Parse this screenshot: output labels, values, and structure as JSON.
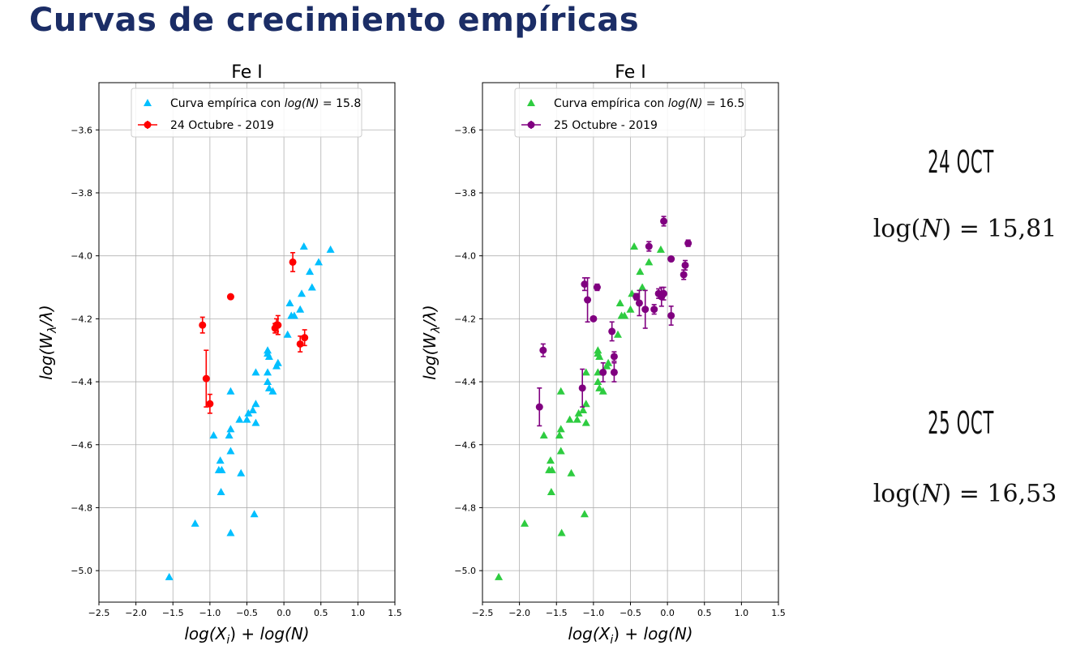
{
  "slide_title": "Curvas de crecimiento empíricas",
  "colors": {
    "title": "#1b2d66",
    "empirical_left": "#00bfff",
    "observed_left": "#ff0000",
    "empirical_right": "#2ecc40",
    "observed_right": "#800080"
  },
  "chart_data": [
    {
      "type": "scatter",
      "title": "Fe I",
      "xlabel": "log(X_i) + log(N)",
      "ylabel": "log(W_λ/λ)",
      "xlim": [
        -2.5,
        1.5
      ],
      "ylim": [
        -5.1,
        -3.45
      ],
      "xticks": [
        -2.5,
        -2.0,
        -1.5,
        -1.0,
        -0.5,
        0.0,
        0.5,
        1.0,
        1.5
      ],
      "yticks": [
        -3.6,
        -3.8,
        -4.0,
        -4.2,
        -4.4,
        -4.6,
        -4.8,
        -5.0
      ],
      "grid": true,
      "legend_position": "top-center",
      "series": [
        {
          "name": "Curva empírica con log(N) = 15.8",
          "marker": "triangle",
          "color": "#00bfff",
          "points": [
            [
              -1.55,
              -5.02
            ],
            [
              -1.2,
              -4.85
            ],
            [
              -0.72,
              -4.88
            ],
            [
              -0.4,
              -4.82
            ],
            [
              -0.85,
              -4.75
            ],
            [
              -0.88,
              -4.68
            ],
            [
              -0.84,
              -4.68
            ],
            [
              -0.86,
              -4.65
            ],
            [
              -0.72,
              -4.62
            ],
            [
              -0.58,
              -4.69
            ],
            [
              -0.95,
              -4.57
            ],
            [
              -0.74,
              -4.57
            ],
            [
              -0.72,
              -4.55
            ],
            [
              -0.6,
              -4.52
            ],
            [
              -0.5,
              -4.52
            ],
            [
              -0.48,
              -4.5
            ],
            [
              -0.42,
              -4.49
            ],
            [
              -0.38,
              -4.47
            ],
            [
              -0.38,
              -4.53
            ],
            [
              -0.72,
              -4.43
            ],
            [
              -0.38,
              -4.37
            ],
            [
              -0.22,
              -4.37
            ],
            [
              -0.22,
              -4.4
            ],
            [
              -0.2,
              -4.42
            ],
            [
              -0.15,
              -4.43
            ],
            [
              -0.08,
              -4.34
            ],
            [
              -0.1,
              -4.35
            ],
            [
              -0.22,
              -4.3
            ],
            [
              -0.22,
              -4.31
            ],
            [
              -0.2,
              -4.32
            ],
            [
              0.05,
              -4.25
            ],
            [
              0.1,
              -4.19
            ],
            [
              0.14,
              -4.19
            ],
            [
              0.22,
              -4.17
            ],
            [
              0.24,
              -4.12
            ],
            [
              0.08,
              -4.15
            ],
            [
              0.38,
              -4.1
            ],
            [
              0.35,
              -4.05
            ],
            [
              0.47,
              -4.02
            ],
            [
              0.27,
              -3.97
            ],
            [
              0.63,
              -3.98
            ]
          ]
        },
        {
          "name": "24 Octubre - 2019",
          "marker": "circle-errorbar",
          "color": "#ff0000",
          "points": [
            [
              -1.1,
              -4.22,
              0.025
            ],
            [
              -1.05,
              -4.39,
              0.09
            ],
            [
              -1.0,
              -4.47,
              0.03
            ],
            [
              -0.72,
              -4.13,
              0.0
            ],
            [
              0.12,
              -4.02,
              0.03
            ],
            [
              -0.1,
              -4.22,
              0.02
            ],
            [
              -0.12,
              -4.23,
              0.015
            ],
            [
              -0.08,
              -4.22,
              0.03
            ],
            [
              0.22,
              -4.28,
              0.025
            ],
            [
              0.28,
              -4.26,
              0.025
            ]
          ]
        }
      ]
    },
    {
      "type": "scatter",
      "title": "Fe I",
      "xlabel": "log(X_i) + log(N)",
      "ylabel": "log(W_λ/λ)",
      "xlim": [
        -2.5,
        1.5
      ],
      "ylim": [
        -5.1,
        -3.45
      ],
      "xticks": [
        -2.5,
        -2.0,
        -1.5,
        -1.0,
        -0.5,
        0.0,
        0.5,
        1.0,
        1.5
      ],
      "yticks": [
        -3.6,
        -3.8,
        -4.0,
        -4.2,
        -4.4,
        -4.6,
        -4.8,
        -5.0
      ],
      "grid": true,
      "legend_position": "top-center",
      "series": [
        {
          "name": "Curva empírica con log(N) = 16.5",
          "marker": "triangle",
          "color": "#2ecc40",
          "points": [
            [
              -2.28,
              -5.02
            ],
            [
              -1.93,
              -4.85
            ],
            [
              -1.43,
              -4.88
            ],
            [
              -1.12,
              -4.82
            ],
            [
              -1.57,
              -4.75
            ],
            [
              -1.6,
              -4.68
            ],
            [
              -1.56,
              -4.68
            ],
            [
              -1.58,
              -4.65
            ],
            [
              -1.44,
              -4.62
            ],
            [
              -1.3,
              -4.69
            ],
            [
              -1.67,
              -4.57
            ],
            [
              -1.46,
              -4.57
            ],
            [
              -1.44,
              -4.55
            ],
            [
              -1.32,
              -4.52
            ],
            [
              -1.22,
              -4.52
            ],
            [
              -1.2,
              -4.5
            ],
            [
              -1.14,
              -4.49
            ],
            [
              -1.1,
              -4.47
            ],
            [
              -1.1,
              -4.53
            ],
            [
              -1.44,
              -4.43
            ],
            [
              -1.1,
              -4.37
            ],
            [
              -0.94,
              -4.37
            ],
            [
              -0.94,
              -4.4
            ],
            [
              -0.92,
              -4.42
            ],
            [
              -0.87,
              -4.43
            ],
            [
              -0.8,
              -4.34
            ],
            [
              -0.82,
              -4.35
            ],
            [
              -0.94,
              -4.3
            ],
            [
              -0.94,
              -4.31
            ],
            [
              -0.92,
              -4.32
            ],
            [
              -0.67,
              -4.25
            ],
            [
              -0.62,
              -4.19
            ],
            [
              -0.58,
              -4.19
            ],
            [
              -0.5,
              -4.17
            ],
            [
              -0.48,
              -4.12
            ],
            [
              -0.64,
              -4.15
            ],
            [
              -0.34,
              -4.1
            ],
            [
              -0.37,
              -4.05
            ],
            [
              -0.25,
              -4.02
            ],
            [
              -0.45,
              -3.97
            ],
            [
              -0.09,
              -3.98
            ]
          ]
        },
        {
          "name": "25 Octubre - 2019",
          "marker": "circle-errorbar",
          "color": "#800080",
          "points": [
            [
              -1.73,
              -4.48,
              0.06
            ],
            [
              -1.68,
              -4.3,
              0.02
            ],
            [
              -1.15,
              -4.42,
              0.06
            ],
            [
              -1.12,
              -4.09,
              0.02
            ],
            [
              -1.08,
              -4.14,
              0.07
            ],
            [
              -1.0,
              -4.2,
              0.0
            ],
            [
              -0.95,
              -4.1,
              0.01
            ],
            [
              -0.87,
              -4.37,
              0.03
            ],
            [
              -0.75,
              -4.24,
              0.03
            ],
            [
              -0.72,
              -4.32,
              0.015
            ],
            [
              -0.72,
              -4.37,
              0.03
            ],
            [
              -0.42,
              -4.13,
              0.01
            ],
            [
              -0.38,
              -4.15,
              0.04
            ],
            [
              -0.3,
              -4.17,
              0.06
            ],
            [
              -0.25,
              -3.97,
              0.015
            ],
            [
              -0.18,
              -4.17,
              0.015
            ],
            [
              -0.12,
              -4.12,
              0.015
            ],
            [
              -0.08,
              -4.13,
              0.03
            ],
            [
              -0.05,
              -4.12,
              0.02
            ],
            [
              -0.05,
              -3.89,
              0.015
            ],
            [
              0.05,
              -4.19,
              0.03
            ],
            [
              0.05,
              -4.01,
              0.0
            ],
            [
              0.22,
              -4.06,
              0.015
            ],
            [
              0.24,
              -4.03,
              0.015
            ],
            [
              0.28,
              -3.96,
              0.01
            ]
          ]
        }
      ]
    }
  ],
  "side_results": [
    {
      "date_label": "24 OCT",
      "result": "log(N) = 15,81",
      "prefix": "log(",
      "var": "N",
      "suffix": ") = 15,81"
    },
    {
      "date_label": "25 OCT",
      "result": "log(N) = 16,53",
      "prefix": "log(",
      "var": "N",
      "suffix": ") = 16,53"
    }
  ]
}
